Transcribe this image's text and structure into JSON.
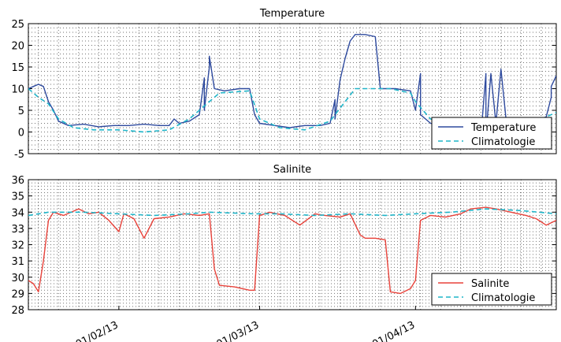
{
  "chart_data": [
    {
      "type": "line",
      "title": "Temperature",
      "xlabel": "",
      "ylabel": "",
      "ylim": [
        -5,
        25
      ],
      "yticks": [
        -5,
        0,
        5,
        10,
        15,
        20,
        25
      ],
      "x_range": [
        "2013-01-14",
        "2013-04-29"
      ],
      "xticks": [],
      "grid": true,
      "legend_position": "bottom-right",
      "series": [
        {
          "name": "Temperature",
          "color": "#2e4a9e",
          "style": "solid",
          "points": [
            [
              "2013-01-14",
              10
            ],
            [
              "2013-01-15",
              10.5
            ],
            [
              "2013-01-16",
              11
            ],
            [
              "2013-01-17",
              10.5
            ],
            [
              "2013-01-18",
              7
            ],
            [
              "2013-01-19",
              5
            ],
            [
              "2013-01-20",
              2.5
            ],
            [
              "2013-01-22",
              1.5
            ],
            [
              "2013-01-25",
              1.8
            ],
            [
              "2013-01-28",
              1.2
            ],
            [
              "2013-01-31",
              1.5
            ],
            [
              "2013-02-03",
              1.5
            ],
            [
              "2013-02-06",
              1.8
            ],
            [
              "2013-02-09",
              1.5
            ],
            [
              "2013-02-11",
              1.5
            ],
            [
              "2013-02-12",
              3
            ],
            [
              "2013-02-13",
              2
            ],
            [
              "2013-02-15",
              2.5
            ],
            [
              "2013-02-17",
              4
            ],
            [
              "2013-02-18",
              12.5
            ],
            [
              "2013-02-18",
              5
            ],
            [
              "2013-02-19",
              15
            ],
            [
              "2013-02-19",
              17.5
            ],
            [
              "2013-02-20",
              10
            ],
            [
              "2013-02-22",
              9.5
            ],
            [
              "2013-02-25",
              10
            ],
            [
              "2013-02-27",
              10
            ],
            [
              "2013-02-28",
              4
            ],
            [
              "2013-03-01",
              2
            ],
            [
              "2013-03-04",
              1.5
            ],
            [
              "2013-03-07",
              1
            ],
            [
              "2013-03-10",
              1.5
            ],
            [
              "2013-03-13",
              1.5
            ],
            [
              "2013-03-15",
              2
            ],
            [
              "2013-03-16",
              7.5
            ],
            [
              "2013-03-16",
              3
            ],
            [
              "2013-03-17",
              12
            ],
            [
              "2013-03-18",
              17
            ],
            [
              "2013-03-19",
              21
            ],
            [
              "2013-03-20",
              22.5
            ],
            [
              "2013-03-22",
              22.5
            ],
            [
              "2013-03-24",
              22
            ],
            [
              "2013-03-25",
              10
            ],
            [
              "2013-03-28",
              10
            ],
            [
              "2013-03-31",
              9.5
            ],
            [
              "2013-04-01",
              5
            ],
            [
              "2013-04-02",
              13.5
            ],
            [
              "2013-04-02",
              4
            ],
            [
              "2013-04-04",
              2
            ],
            [
              "2013-04-06",
              1.5
            ],
            [
              "2013-04-08",
              1.5
            ],
            [
              "2013-04-10",
              0.5
            ],
            [
              "2013-04-12",
              -0.5
            ],
            [
              "2013-04-14",
              -1
            ],
            [
              "2013-04-15",
              13.5
            ],
            [
              "2013-04-15",
              -1
            ],
            [
              "2013-04-16",
              13.5
            ],
            [
              "2013-04-17",
              2
            ],
            [
              "2013-04-18",
              14.5
            ],
            [
              "2013-04-19",
              3
            ],
            [
              "2013-04-21",
              3
            ],
            [
              "2013-04-24",
              3
            ],
            [
              "2013-04-26",
              3
            ],
            [
              "2013-04-27",
              3.5
            ],
            [
              "2013-04-28",
              8
            ],
            [
              "2013-04-28",
              10.5
            ],
            [
              "2013-04-29",
              13
            ]
          ]
        },
        {
          "name": "Climatologie",
          "color": "#1fb5c9",
          "style": "dashed",
          "points": [
            [
              "2013-01-14",
              10
            ],
            [
              "2013-01-16",
              8
            ],
            [
              "2013-01-18",
              6.5
            ],
            [
              "2013-01-20",
              3
            ],
            [
              "2013-01-23",
              1
            ],
            [
              "2013-01-27",
              0.5
            ],
            [
              "2013-02-01",
              0.5
            ],
            [
              "2013-02-06",
              0
            ],
            [
              "2013-02-11",
              0.5
            ],
            [
              "2013-02-15",
              3
            ],
            [
              "2013-02-18",
              6
            ],
            [
              "2013-02-21",
              9
            ],
            [
              "2013-02-27",
              9.5
            ],
            [
              "2013-03-01",
              3
            ],
            [
              "2013-03-05",
              1
            ],
            [
              "2013-03-10",
              0.5
            ],
            [
              "2013-03-15",
              2.5
            ],
            [
              "2013-03-18",
              7
            ],
            [
              "2013-03-20",
              10
            ],
            [
              "2013-03-27",
              10
            ],
            [
              "2013-03-31",
              9
            ],
            [
              "2013-04-01",
              7
            ],
            [
              "2013-04-04",
              3
            ],
            [
              "2013-04-08",
              1.5
            ],
            [
              "2013-04-12",
              0
            ],
            [
              "2013-04-15",
              -0.5
            ],
            [
              "2013-04-18",
              1.5
            ],
            [
              "2013-04-22",
              3
            ],
            [
              "2013-04-26",
              3
            ],
            [
              "2013-04-29",
              4.5
            ]
          ]
        }
      ]
    },
    {
      "type": "line",
      "title": "Salinite",
      "xlabel": "",
      "ylabel": "",
      "ylim": [
        28,
        36
      ],
      "yticks": [
        28,
        29,
        30,
        31,
        32,
        33,
        34,
        35,
        36
      ],
      "x_range": [
        "2013-01-14",
        "2013-04-29"
      ],
      "xticks": [
        "01/02/13",
        "01/03/13",
        "01/04/13"
      ],
      "xtick_dates": [
        "2013-02-01",
        "2013-03-01",
        "2013-04-01"
      ],
      "grid": true,
      "legend_position": "bottom-right",
      "series": [
        {
          "name": "Salinite",
          "color": "#e8423a",
          "style": "solid",
          "points": [
            [
              "2013-01-14",
              29.8
            ],
            [
              "2013-01-15",
              29.6
            ],
            [
              "2013-01-16",
              29.1
            ],
            [
              "2013-01-17",
              31
            ],
            [
              "2013-01-18",
              33.5
            ],
            [
              "2013-01-19",
              34
            ],
            [
              "2013-01-21",
              33.8
            ],
            [
              "2013-01-24",
              34.2
            ],
            [
              "2013-01-26",
              33.9
            ],
            [
              "2013-01-28",
              34
            ],
            [
              "2013-01-30",
              33.5
            ],
            [
              "2013-02-01",
              32.8
            ],
            [
              "2013-02-02",
              33.9
            ],
            [
              "2013-02-04",
              33.6
            ],
            [
              "2013-02-06",
              32.4
            ],
            [
              "2013-02-08",
              33.6
            ],
            [
              "2013-02-11",
              33.7
            ],
            [
              "2013-02-14",
              33.9
            ],
            [
              "2013-02-17",
              33.8
            ],
            [
              "2013-02-19",
              33.9
            ],
            [
              "2013-02-20",
              30.5
            ],
            [
              "2013-02-21",
              29.5
            ],
            [
              "2013-02-24",
              29.4
            ],
            [
              "2013-02-27",
              29.2
            ],
            [
              "2013-02-28",
              29.2
            ],
            [
              "2013-03-01",
              33.8
            ],
            [
              "2013-03-03",
              34
            ],
            [
              "2013-03-06",
              33.8
            ],
            [
              "2013-03-09",
              33.2
            ],
            [
              "2013-03-12",
              33.9
            ],
            [
              "2013-03-14",
              33.8
            ],
            [
              "2013-03-17",
              33.7
            ],
            [
              "2013-03-19",
              33.9
            ],
            [
              "2013-03-21",
              32.6
            ],
            [
              "2013-03-22",
              32.4
            ],
            [
              "2013-03-24",
              32.4
            ],
            [
              "2013-03-26",
              32.3
            ],
            [
              "2013-03-27",
              29.1
            ],
            [
              "2013-03-29",
              29
            ],
            [
              "2013-03-31",
              29.3
            ],
            [
              "2013-04-01",
              29.8
            ],
            [
              "2013-04-02",
              33.5
            ],
            [
              "2013-04-04",
              33.8
            ],
            [
              "2013-04-07",
              33.7
            ],
            [
              "2013-04-10",
              33.9
            ],
            [
              "2013-04-12",
              34.2
            ],
            [
              "2013-04-15",
              34.3
            ],
            [
              "2013-04-17",
              34.2
            ],
            [
              "2013-04-20",
              34
            ],
            [
              "2013-04-23",
              33.8
            ],
            [
              "2013-04-25",
              33.6
            ],
            [
              "2013-04-27",
              33.2
            ],
            [
              "2013-04-29",
              33.5
            ]
          ]
        },
        {
          "name": "Climatologie",
          "color": "#1fb5c9",
          "style": "dashed",
          "points": [
            [
              "2013-01-14",
              33.8
            ],
            [
              "2013-01-18",
              34
            ],
            [
              "2013-01-25",
              34
            ],
            [
              "2013-02-01",
              33.9
            ],
            [
              "2013-02-08",
              33.8
            ],
            [
              "2013-02-15",
              33.9
            ],
            [
              "2013-02-19",
              34
            ],
            [
              "2013-02-28",
              33.9
            ],
            [
              "2013-03-05",
              33.9
            ],
            [
              "2013-03-12",
              33.8
            ],
            [
              "2013-03-19",
              33.9
            ],
            [
              "2013-03-26",
              33.8
            ],
            [
              "2013-04-01",
              33.9
            ],
            [
              "2013-04-08",
              34
            ],
            [
              "2013-04-15",
              34.2
            ],
            [
              "2013-04-22",
              34.1
            ],
            [
              "2013-04-29",
              33.9
            ]
          ]
        }
      ]
    }
  ]
}
